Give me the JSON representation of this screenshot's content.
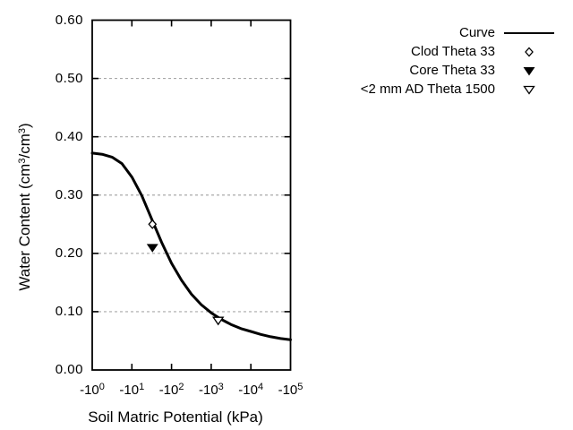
{
  "colors": {
    "background": "#ffffff",
    "axis": "#000000",
    "curve": "#000000",
    "grid": "#a9a9a9"
  },
  "legend": {
    "items": [
      {
        "label": "Curve",
        "marker": "line"
      },
      {
        "label": "Clod Theta 33",
        "marker": "open-diamond"
      },
      {
        "label": "Core Theta 33",
        "marker": "filled-triangle-down"
      },
      {
        "label": "<2 mm AD Theta 1500",
        "marker": "open-triangle-down"
      }
    ]
  },
  "chart_data": {
    "type": "line",
    "title": "",
    "xlabel": "Soil Matric Potential (kPa)",
    "ylabel": "Water Content (cm³/cm³)",
    "ylabel_parts": [
      {
        "t": "Water Content (cm"
      },
      {
        "sup": "3"
      },
      {
        "t": "/cm"
      },
      {
        "sup": "3"
      },
      {
        "t": ")"
      }
    ],
    "x_axis": {
      "scale": "negative-log10",
      "unit": "kPa",
      "tick_base": "-10",
      "tick_exponents": [
        "0",
        "1",
        "2",
        "3",
        "4",
        "5"
      ],
      "range_decades": [
        0,
        5
      ]
    },
    "y_axis": {
      "min": 0.0,
      "max": 0.6,
      "tick_step": 0.1,
      "tick_labels": [
        "0.00",
        "0.10",
        "0.20",
        "0.30",
        "0.40",
        "0.50",
        "0.60"
      ]
    },
    "grid": {
      "horizontal_dashed_at": [
        0.1,
        0.2,
        0.3,
        0.4,
        0.5
      ],
      "vertical": false
    },
    "legend_position": "top-right-outside",
    "series": [
      {
        "name": "Curve",
        "kind": "line",
        "points_log10kPa_theta": [
          [
            0.0,
            0.372
          ],
          [
            0.25,
            0.37
          ],
          [
            0.5,
            0.365
          ],
          [
            0.75,
            0.354
          ],
          [
            1.0,
            0.331
          ],
          [
            1.25,
            0.299
          ],
          [
            1.5,
            0.259
          ],
          [
            1.75,
            0.219
          ],
          [
            2.0,
            0.183
          ],
          [
            2.25,
            0.154
          ],
          [
            2.5,
            0.13
          ],
          [
            2.75,
            0.112
          ],
          [
            3.0,
            0.098
          ],
          [
            3.25,
            0.087
          ],
          [
            3.5,
            0.078
          ],
          [
            3.75,
            0.071
          ],
          [
            4.0,
            0.066
          ],
          [
            4.25,
            0.061
          ],
          [
            4.5,
            0.057
          ],
          [
            4.75,
            0.054
          ],
          [
            5.0,
            0.052
          ]
        ]
      },
      {
        "name": "Clod Theta 33",
        "kind": "scatter",
        "marker": "open-diamond",
        "points": [
          {
            "kPa": -33,
            "theta": 0.25
          }
        ]
      },
      {
        "name": "Core Theta 33",
        "kind": "scatter",
        "marker": "filled-triangle-down",
        "points": [
          {
            "kPa": -33,
            "theta": 0.21
          }
        ]
      },
      {
        "name": "<2 mm AD Theta 1500",
        "kind": "scatter",
        "marker": "open-triangle-down",
        "points": [
          {
            "kPa": -1500,
            "theta": 0.085
          }
        ]
      }
    ]
  }
}
